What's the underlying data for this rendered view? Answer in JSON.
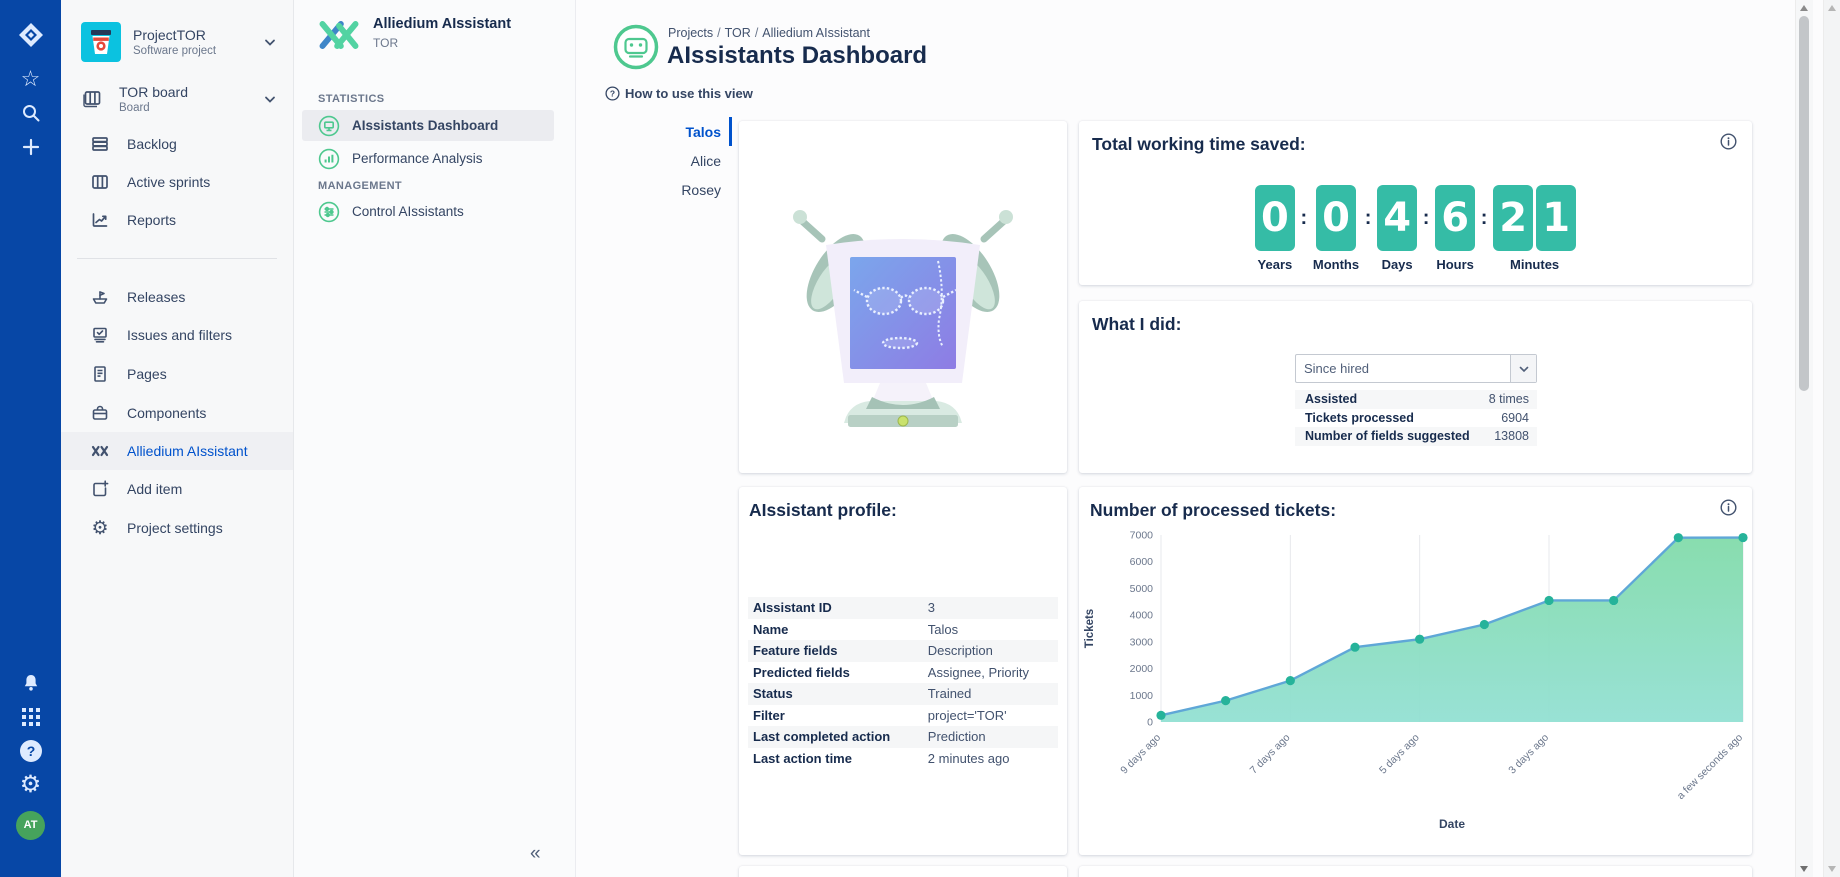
{
  "colors": {
    "rail_bg": "#0747a6",
    "accent_blue": "#0052cc",
    "navy_text": "#172b4d",
    "counter_teal": "#35bca6",
    "icon_green": "#4ec88f",
    "project_icon_bg": "#0bc2e0",
    "selected_row_bg": "#ebecf0"
  },
  "icons": {
    "star_glyph": "☆",
    "gear_glyph": "⚙",
    "collapse_glyph": "«"
  },
  "left_rail": {
    "avatar_initials": "AT"
  },
  "project_sidebar": {
    "project_name": "ProjectTOR",
    "project_type": "Software project",
    "board_name": "TOR board",
    "board_type": "Board",
    "group1": [
      {
        "label": "Backlog"
      },
      {
        "label": "Active sprints"
      },
      {
        "label": "Reports"
      }
    ],
    "group2": [
      {
        "label": "Releases"
      },
      {
        "label": "Issues and filters"
      },
      {
        "label": "Pages"
      },
      {
        "label": "Components"
      },
      {
        "label": "Alliedium AIssistant",
        "selected": true
      },
      {
        "label": "Add item"
      },
      {
        "label": "Project settings"
      }
    ]
  },
  "plugin_panel": {
    "title": "Alliedium AIssistant",
    "subtitle": "TOR",
    "sections": [
      {
        "heading": "STATISTICS",
        "items": [
          {
            "label": "AIssistants Dashboard",
            "selected": true
          },
          {
            "label": "Performance Analysis"
          }
        ]
      },
      {
        "heading": "MANAGEMENT",
        "items": [
          {
            "label": "Control AIssistants"
          }
        ]
      }
    ]
  },
  "main": {
    "breadcrumb": [
      {
        "label": "Projects"
      },
      {
        "label": "TOR"
      },
      {
        "label": "Alliedium AIssistant"
      }
    ],
    "page_title": "AIssistants Dashboard",
    "help_label": "How to use this view",
    "tabs": [
      {
        "label": "Talos",
        "selected": true
      },
      {
        "label": "Alice"
      },
      {
        "label": "Rosey"
      }
    ],
    "time_saved": {
      "title": "Total working time saved:",
      "units": [
        {
          "digits": [
            "0"
          ],
          "label": "Years"
        },
        {
          "digits": [
            "0"
          ],
          "label": "Months"
        },
        {
          "digits": [
            "4"
          ],
          "label": "Days"
        },
        {
          "digits": [
            "6"
          ],
          "label": "Hours"
        },
        {
          "digits": [
            "2",
            "1"
          ],
          "label": "Minutes"
        }
      ]
    },
    "what_i_did": {
      "title": "What I did:",
      "filter_value": "Since hired",
      "stats": [
        {
          "label": "Assisted",
          "value": "8 times"
        },
        {
          "label": "Tickets processed",
          "value": "6904"
        },
        {
          "label": "Number of fields suggested",
          "value": "13808"
        }
      ]
    },
    "profile": {
      "title": "AIssistant profile:",
      "rows": [
        {
          "label": "AIssistant ID",
          "value": "3"
        },
        {
          "label": "Name",
          "value": "Talos"
        },
        {
          "label": "Feature fields",
          "value": "Description"
        },
        {
          "label": "Predicted fields",
          "value": "Assignee, Priority"
        },
        {
          "label": "Status",
          "value": "Trained"
        },
        {
          "label": "Filter",
          "value": "project='TOR'"
        },
        {
          "label": "Last completed action",
          "value": "Prediction"
        },
        {
          "label": "Last action time",
          "value": "2 minutes ago"
        }
      ]
    }
  },
  "chart_data": {
    "type": "area",
    "title": "Number of processed tickets:",
    "x_labels": [
      "9 days ago",
      "",
      "7 days ago",
      "",
      "5 days ago",
      "",
      "3 days ago",
      "",
      "",
      "a few seconds ago"
    ],
    "values": [
      250,
      800,
      1550,
      2800,
      3100,
      3650,
      4550,
      4550,
      6900,
      6904
    ],
    "xlabel": "Date",
    "ylabel": "Tickets",
    "ylim": [
      0,
      7000
    ],
    "yticks": [
      0,
      1000,
      2000,
      3000,
      4000,
      5000,
      6000,
      7000
    ],
    "grid": "vertical-at-labeled-x",
    "legend": "none",
    "line_color": "#5fa7d7",
    "marker_color": "#26b39a",
    "fill_top": "#82dbaa",
    "fill_bottom": "#93e0d3"
  }
}
